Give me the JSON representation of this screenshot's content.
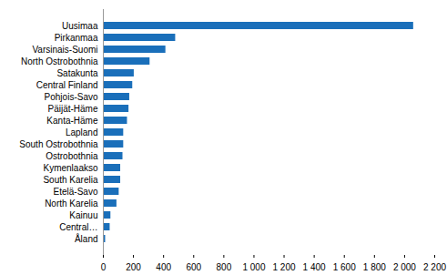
{
  "chart_data": {
    "type": "bar",
    "orientation": "horizontal",
    "categories": [
      "Uusimaa",
      "Pirkanmaa",
      "Varsinais-Suomi",
      "North Ostrobothnia",
      "Satakunta",
      "Central Finland",
      "Pohjois-Savo",
      "Päijät-Häme",
      "Kanta-Häme",
      "Lapland",
      "South Ostrobothnia",
      "Ostrobothnia",
      "Kymenlaakso",
      "South Karelia",
      "Etelä-Savo",
      "North Karelia",
      "Kainuu",
      "Central…",
      "Åland"
    ],
    "values": [
      2060,
      480,
      415,
      310,
      205,
      195,
      175,
      170,
      160,
      135,
      135,
      130,
      115,
      115,
      105,
      90,
      50,
      45,
      15
    ],
    "color": "#1a6fba",
    "xlim": [
      0,
      2200
    ],
    "xticks": [
      0,
      200,
      400,
      600,
      800,
      {
        "value": 1000,
        "label": "1 000"
      },
      {
        "value": 1200,
        "label": "1 200"
      },
      {
        "value": 1400,
        "label": "1 400"
      },
      {
        "value": 1600,
        "label": "1 600"
      },
      {
        "value": 1800,
        "label": "1 800"
      },
      {
        "value": 2000,
        "label": "2 000"
      },
      {
        "value": 2200,
        "label": "2 200"
      }
    ],
    "grid": false
  }
}
